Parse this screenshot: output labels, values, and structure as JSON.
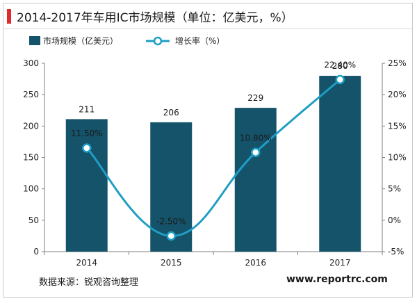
{
  "title": "2014-2017年车用IC市场规模（单位：亿美元，%）",
  "footer": {
    "source": "数据来源：锐观咨询整理",
    "url": "www.reportrc.com"
  },
  "colors": {
    "bar": "#15536a",
    "line": "#1e9ec4",
    "accent": "#e0292b"
  },
  "chart_data": {
    "type": "bar",
    "categories": [
      "2014",
      "2015",
      "2016",
      "2017"
    ],
    "series": [
      {
        "name": "市场规模（亿美元）",
        "type": "bar",
        "axis": "left",
        "values": [
          211,
          206,
          229,
          280
        ],
        "labels": [
          "211",
          "206",
          "229",
          "280"
        ]
      },
      {
        "name": "增长率（%）",
        "type": "line",
        "axis": "right",
        "values": [
          11.5,
          -2.5,
          10.8,
          22.4
        ],
        "labels": [
          "11.50%",
          "-2.50%",
          "10.80%",
          "22.40%"
        ]
      }
    ],
    "y_left": {
      "min": 0,
      "max": 300,
      "ticks": [
        "0",
        "50",
        "100",
        "150",
        "200",
        "250",
        "300"
      ]
    },
    "y_right": {
      "min": -5,
      "max": 25,
      "ticks": [
        "-5%",
        "0%",
        "5%",
        "10%",
        "15%",
        "20%",
        "25%"
      ]
    },
    "grid": false,
    "legend": "top-left"
  }
}
